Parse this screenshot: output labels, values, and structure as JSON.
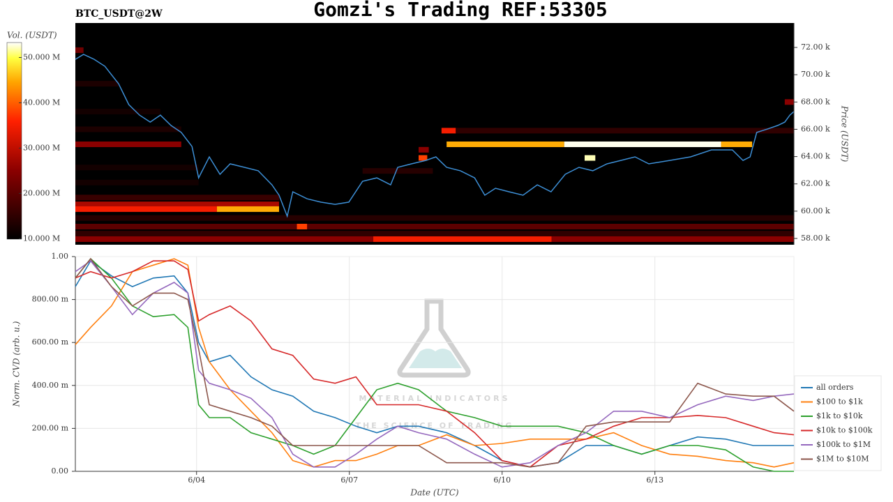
{
  "chart_data": [
    {
      "type": "heatmap",
      "title": "Gomzi's Trading REF:53305",
      "subtitle": "BTC_USDT@2W",
      "ylabel": "Price (USDT)",
      "colorbar_label": "Vol. (USDT)",
      "xlim": [
        1.62,
        15.73
      ],
      "ylim": [
        57540,
        73790
      ],
      "yticks": [
        {
          "value": 58000,
          "label": "58.00 k"
        },
        {
          "value": 60000,
          "label": "60.00 k"
        },
        {
          "value": 62000,
          "label": "62.00 k"
        },
        {
          "value": 64000,
          "label": "64.00 k"
        },
        {
          "value": 66000,
          "label": "66.00 k"
        },
        {
          "value": 68000,
          "label": "68.00 k"
        },
        {
          "value": 70000,
          "label": "70.00 k"
        },
        {
          "value": 72000,
          "label": "72.00 k"
        }
      ],
      "clim": [
        9900000,
        53300000
      ],
      "cticks": [
        {
          "value": 10000000,
          "label": "10.000 M"
        },
        {
          "value": 20000000,
          "label": "20.000 M"
        },
        {
          "value": 30000000,
          "label": "30.000 M"
        },
        {
          "value": 40000000,
          "label": "40.000 M"
        },
        {
          "value": 50000000,
          "label": "50.000 M"
        }
      ],
      "levels": {
        "price": [
          71800,
          69340,
          67300,
          66000,
          65900,
          65900,
          64900,
          64900,
          64900,
          64900,
          64500,
          63900,
          63900,
          63200,
          62950,
          62100,
          61000,
          60500,
          60150,
          60150,
          59500,
          58870,
          58870,
          58350,
          57950,
          57950,
          57950,
          68000
        ],
        "start": [
          1.62,
          1.62,
          1.62,
          1.62,
          8.81,
          9.09,
          1.62,
          8.91,
          11.22,
          14.3,
          8.36,
          8.36,
          11.62,
          1.62,
          7.26,
          1.62,
          1.62,
          1.62,
          1.62,
          4.4,
          1.62,
          1.62,
          5.97,
          1.62,
          1.62,
          7.47,
          10.97,
          15.55
        ],
        "end": [
          1.78,
          2.47,
          3.29,
          3.7,
          9.09,
          15.73,
          3.7,
          11.22,
          14.3,
          14.91,
          8.56,
          8.53,
          11.83,
          4.04,
          8.64,
          4.04,
          5.62,
          5.62,
          4.4,
          5.62,
          15.73,
          15.73,
          6.17,
          15.73,
          7.47,
          10.97,
          15.73,
          15.73
        ],
        "values": [
          22000000,
          13000000,
          12000000,
          13000000,
          35000000,
          15000000,
          25000000,
          45000000,
          53000000,
          45000000,
          25000000,
          38000000,
          52000000,
          12000000,
          14000000,
          12000000,
          16000000,
          28000000,
          35000000,
          45000000,
          14000000,
          20000000,
          38000000,
          15000000,
          25000000,
          35000000,
          25000000,
          25000000
        ]
      },
      "line": {
        "color": "#3d8fd6",
        "x": [
          1.62,
          1.78,
          1.99,
          2.2,
          2.47,
          2.67,
          2.88,
          3.09,
          3.29,
          3.5,
          3.7,
          3.91,
          4.04,
          4.25,
          4.46,
          4.66,
          4.94,
          5.21,
          5.48,
          5.62,
          5.78,
          5.89,
          6.17,
          6.44,
          6.72,
          6.99,
          7.26,
          7.54,
          7.81,
          7.95,
          8.22,
          8.5,
          8.7,
          8.91,
          9.18,
          9.46,
          9.66,
          9.87,
          10.14,
          10.41,
          10.69,
          10.96,
          11.24,
          11.51,
          11.78,
          12.06,
          12.33,
          12.61,
          12.88,
          13.29,
          13.7,
          14.11,
          14.52,
          14.73,
          14.87,
          15.0,
          15.21,
          15.41,
          15.55,
          15.65,
          15.73
        ],
        "values": [
          71130,
          71490,
          71130,
          70620,
          69340,
          67810,
          67040,
          66530,
          67040,
          66280,
          65770,
          64740,
          62440,
          63980,
          62700,
          63470,
          63210,
          62960,
          61930,
          61170,
          59630,
          61420,
          60910,
          60660,
          60500,
          60660,
          62190,
          62440,
          61930,
          63210,
          63470,
          63720,
          63980,
          63210,
          62960,
          62440,
          61170,
          61680,
          61420,
          61170,
          61930,
          61420,
          62700,
          63210,
          62960,
          63470,
          63720,
          63980,
          63470,
          63720,
          63980,
          64490,
          64490,
          63720,
          63980,
          65770,
          66020,
          66280,
          66530,
          67040,
          67300
        ]
      }
    },
    {
      "type": "line",
      "xlabel": "Date (UTC)",
      "ylabel": "Norm. CVD (arb. u.)",
      "grid": true,
      "legend": "right",
      "annotations": [
        "MATERIAL INDICATORS",
        "THE SCIENCE OF TRADING"
      ],
      "xlim": [
        1.62,
        15.73
      ],
      "ylim": [
        0,
        1
      ],
      "xticks": [
        {
          "value": 4,
          "label": "6/04"
        },
        {
          "value": 7,
          "label": "6/07"
        },
        {
          "value": 10,
          "label": "6/10"
        },
        {
          "value": 13,
          "label": "6/13"
        }
      ],
      "yticks": [
        {
          "value": 0,
          "label": "0.00"
        },
        {
          "value": 0.2,
          "label": "200.00 m"
        },
        {
          "value": 0.4,
          "label": "400.00 m"
        },
        {
          "value": 0.6,
          "label": "600.00 m"
        },
        {
          "value": 0.8,
          "label": "800.00 m"
        },
        {
          "value": 1,
          "label": "1.00"
        }
      ],
      "x": [
        1.62,
        1.92,
        2.33,
        2.74,
        3.15,
        3.56,
        3.83,
        4.04,
        4.25,
        4.66,
        5.07,
        5.48,
        5.89,
        6.3,
        6.72,
        7.13,
        7.54,
        7.95,
        8.36,
        8.91,
        9.46,
        10.0,
        10.55,
        11.1,
        11.65,
        12.19,
        12.74,
        13.29,
        13.84,
        14.39,
        14.93,
        15.34,
        15.73
      ],
      "series": [
        {
          "name": "all orders",
          "color": "#1f77b4",
          "values": [
            0.86,
            0.98,
            0.91,
            0.86,
            0.9,
            0.91,
            0.83,
            0.6,
            0.51,
            0.54,
            0.44,
            0.38,
            0.35,
            0.28,
            0.25,
            0.21,
            0.18,
            0.21,
            0.21,
            0.18,
            0.12,
            0.05,
            0.02,
            0.04,
            0.12,
            0.12,
            0.08,
            0.12,
            0.16,
            0.15,
            0.12,
            0.12,
            0.12
          ]
        },
        {
          "name": "$100 to $1k",
          "color": "#ff7f0e",
          "values": [
            0.59,
            0.67,
            0.77,
            0.93,
            0.96,
            0.99,
            0.96,
            0.67,
            0.51,
            0.38,
            0.28,
            0.18,
            0.05,
            0.02,
            0.05,
            0.05,
            0.08,
            0.12,
            0.12,
            0.17,
            0.12,
            0.13,
            0.15,
            0.15,
            0.15,
            0.18,
            0.12,
            0.08,
            0.07,
            0.05,
            0.04,
            0.02,
            0.04
          ]
        },
        {
          "name": "$1k to $10k",
          "color": "#2ca02c",
          "values": [
            0.9,
            0.99,
            0.9,
            0.77,
            0.72,
            0.73,
            0.67,
            0.31,
            0.25,
            0.25,
            0.18,
            0.15,
            0.12,
            0.08,
            0.12,
            0.25,
            0.38,
            0.41,
            0.38,
            0.28,
            0.25,
            0.21,
            0.21,
            0.21,
            0.18,
            0.12,
            0.08,
            0.12,
            0.12,
            0.1,
            0.02,
            0,
            0
          ]
        },
        {
          "name": "$10k to $100k",
          "color": "#d62728",
          "values": [
            0.9,
            0.93,
            0.9,
            0.93,
            0.98,
            0.98,
            0.94,
            0.7,
            0.73,
            0.77,
            0.7,
            0.57,
            0.54,
            0.43,
            0.41,
            0.44,
            0.31,
            0.31,
            0.31,
            0.28,
            0.18,
            0.05,
            0.02,
            0.12,
            0.15,
            0.21,
            0.25,
            0.25,
            0.26,
            0.25,
            0.21,
            0.18,
            0.17
          ]
        },
        {
          "name": "$100k to $1M",
          "color": "#9467bd",
          "values": [
            0.93,
            0.98,
            0.86,
            0.73,
            0.83,
            0.88,
            0.83,
            0.47,
            0.41,
            0.38,
            0.34,
            0.25,
            0.08,
            0.02,
            0.02,
            0.08,
            0.15,
            0.21,
            0.18,
            0.15,
            0.08,
            0.02,
            0.04,
            0.12,
            0.18,
            0.28,
            0.28,
            0.25,
            0.31,
            0.35,
            0.33,
            0.35,
            0.36
          ]
        },
        {
          "name": "$1M to $10M",
          "color": "#8c564b",
          "values": [
            0.9,
            0.99,
            0.86,
            0.77,
            0.83,
            0.83,
            0.8,
            0.57,
            0.31,
            0.28,
            0.25,
            0.21,
            0.12,
            0.12,
            0.12,
            0.12,
            0.12,
            0.12,
            0.12,
            0.04,
            0.04,
            0.04,
            0.02,
            0.04,
            0.21,
            0.23,
            0.23,
            0.23,
            0.41,
            0.36,
            0.35,
            0.35,
            0.28
          ]
        }
      ]
    }
  ]
}
